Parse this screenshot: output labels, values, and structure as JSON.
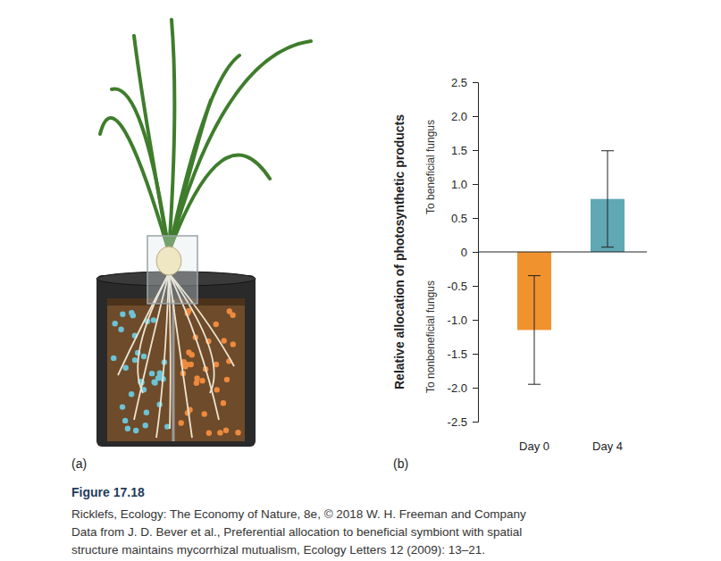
{
  "figure": {
    "panel_labels": [
      "(a)",
      "(b)"
    ],
    "title": "Figure 17.18",
    "caption": [
      "Ricklefs, Ecology: The Economy of Nature, 8e, © 2018 W. H. Freeman and Company",
      "Data from J. D. Bever et al., Preferential allocation to beneficial symbiont with spatial",
      "structure maintains mycorrhizal mutualism, Ecology Letters 12 (2009): 13–21."
    ]
  },
  "chart_data": {
    "type": "bar",
    "ylabel": "Relative allocation of photosynthetic products",
    "annotations": [
      "To beneficial fungus",
      "To nonbeneficial fungus"
    ],
    "categories": [
      "Day 0",
      "Day 4"
    ],
    "values": [
      -1.15,
      0.78
    ],
    "error": [
      0.8,
      0.71
    ],
    "colors": [
      "#f0922e",
      "#5fa8b4"
    ],
    "ylim": [
      -2.5,
      2.5
    ],
    "yticks": [
      -2.5,
      {
        "value": -2,
        "label": "-2.0"
      },
      -1.5,
      {
        "value": -1,
        "label": "-1.0"
      },
      -0.5,
      0,
      0.5,
      {
        "value": 1,
        "label": "1.0"
      },
      1.5,
      {
        "value": 2,
        "label": "2.0"
      },
      2.5
    ]
  }
}
